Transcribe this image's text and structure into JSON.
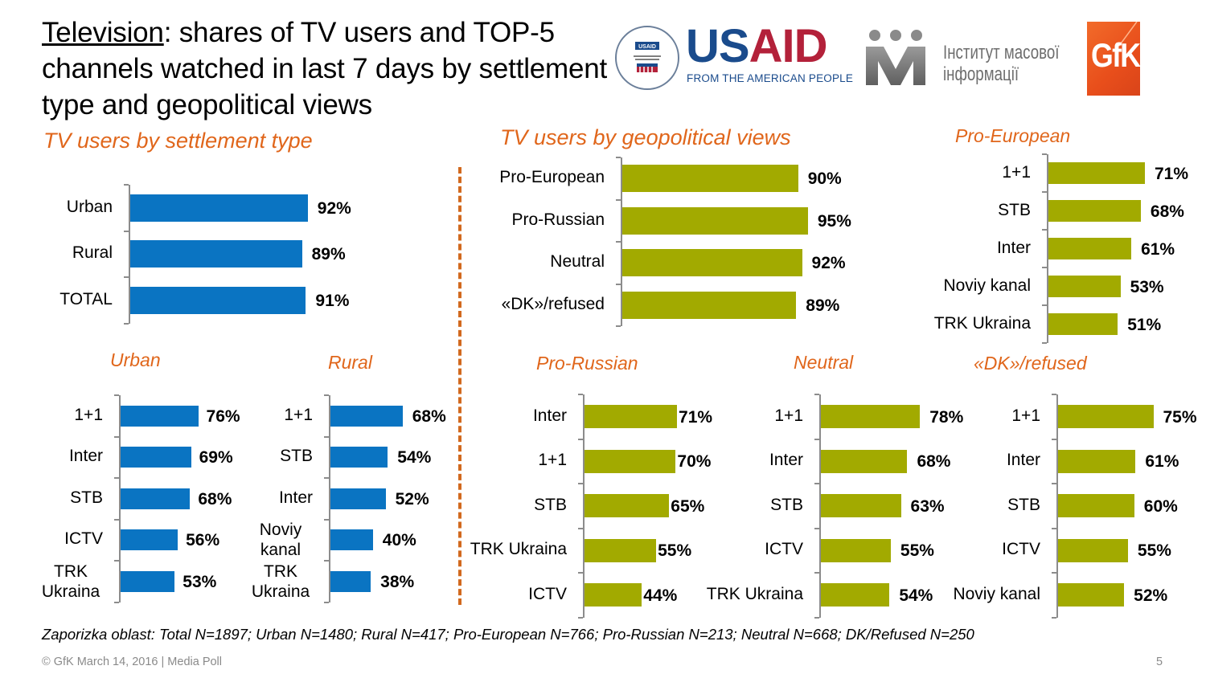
{
  "title": {
    "underlined": "Television",
    "rest": ": shares of TV users and TOP-5 channels watched in last 7 days by settlement type and geopolitical views"
  },
  "logos": {
    "usaid_seal_text": "USAID",
    "usaid_us": "US",
    "usaid_aid": "AID",
    "usaid_tagline": "FROM THE AMERICAN PEOPLE",
    "imi_line1": "Інститут масової",
    "imi_line2": "інформації",
    "gfk": "GfK"
  },
  "colors": {
    "settlement_bar": "#0A74C2",
    "geopolitical_bar": "#A2AA00",
    "section_title": "#E0661B",
    "axis": "#8c8c8c"
  },
  "sections": {
    "settlement": "TV users by settlement type",
    "geopolitical": "TV users by geopolitical views"
  },
  "note": "Zaporizka oblast: Total N=1897; Urban N=1480; Rural N=417; Pro-European N=766; Pro-Russian N=213; Neutral N=668; DK/Refused N=250",
  "footer": "© GfK March 14, 2016 | Media Poll",
  "page_number": "5",
  "chart_data": [
    {
      "id": "settlement",
      "type": "bar",
      "orientation": "horizontal",
      "title": "TV users by settlement type",
      "categories": [
        "Urban",
        "Rural",
        "TOTAL"
      ],
      "values": [
        92,
        89,
        91
      ],
      "labels": [
        "92%",
        "89%",
        "91%"
      ],
      "unit": "%",
      "xlim": [
        0,
        100
      ]
    },
    {
      "id": "urban",
      "type": "bar",
      "orientation": "horizontal",
      "title": "Urban",
      "categories": [
        "1+1",
        "Inter",
        "STB",
        "ICTV",
        "TRK Ukraina"
      ],
      "values": [
        76,
        69,
        68,
        56,
        53
      ],
      "labels": [
        "76%",
        "69%",
        "68%",
        "56%",
        "53%"
      ],
      "unit": "%",
      "xlim": [
        0,
        100
      ]
    },
    {
      "id": "rural",
      "type": "bar",
      "orientation": "horizontal",
      "title": "Rural",
      "categories": [
        "1+1",
        "STB",
        "Inter",
        "Noviy kanal",
        "TRK Ukraina"
      ],
      "values": [
        68,
        54,
        52,
        40,
        38
      ],
      "labels": [
        "68%",
        "54%",
        "52%",
        "40%",
        "38%"
      ],
      "unit": "%",
      "xlim": [
        0,
        100
      ]
    },
    {
      "id": "geopolitical",
      "type": "bar",
      "orientation": "horizontal",
      "title": "TV users by geopolitical views",
      "categories": [
        "Pro-European",
        "Pro-Russian",
        "Neutral",
        "«DK»/refused"
      ],
      "values": [
        90,
        95,
        92,
        89
      ],
      "labels": [
        "90%",
        "95%",
        "92%",
        "89%"
      ],
      "unit": "%",
      "xlim": [
        0,
        100
      ]
    },
    {
      "id": "pro-european",
      "type": "bar",
      "orientation": "horizontal",
      "title": "Pro-European",
      "categories": [
        "1+1",
        "STB",
        "Inter",
        "Noviy kanal",
        "TRK Ukraina"
      ],
      "values": [
        71,
        68,
        61,
        53,
        51
      ],
      "labels": [
        "71%",
        "68%",
        "61%",
        "53%",
        "51%"
      ],
      "unit": "%",
      "xlim": [
        0,
        100
      ]
    },
    {
      "id": "pro-russian",
      "type": "bar",
      "orientation": "horizontal",
      "title": "Pro-Russian",
      "categories": [
        "Inter",
        "1+1",
        "STB",
        "TRK Ukraina",
        "ICTV"
      ],
      "values": [
        71,
        70,
        65,
        55,
        44
      ],
      "labels": [
        "71%",
        "70%",
        "65%",
        "55%",
        "44%"
      ],
      "unit": "%",
      "xlim": [
        0,
        100
      ]
    },
    {
      "id": "neutral",
      "type": "bar",
      "orientation": "horizontal",
      "title": "Neutral",
      "categories": [
        "1+1",
        "Inter",
        "STB",
        "ICTV",
        "TRK Ukraina"
      ],
      "values": [
        78,
        68,
        63,
        55,
        54
      ],
      "labels": [
        "78%",
        "68%",
        "63%",
        "55%",
        "54%"
      ],
      "unit": "%",
      "xlim": [
        0,
        100
      ]
    },
    {
      "id": "dk-refused",
      "type": "bar",
      "orientation": "horizontal",
      "title": "«DK»/refused",
      "categories": [
        "1+1",
        "Inter",
        "STB",
        "ICTV",
        "Noviy kanal"
      ],
      "values": [
        75,
        61,
        60,
        55,
        52
      ],
      "labels": [
        "75%",
        "61%",
        "60%",
        "55%",
        "52%"
      ],
      "unit": "%",
      "xlim": [
        0,
        100
      ]
    }
  ]
}
